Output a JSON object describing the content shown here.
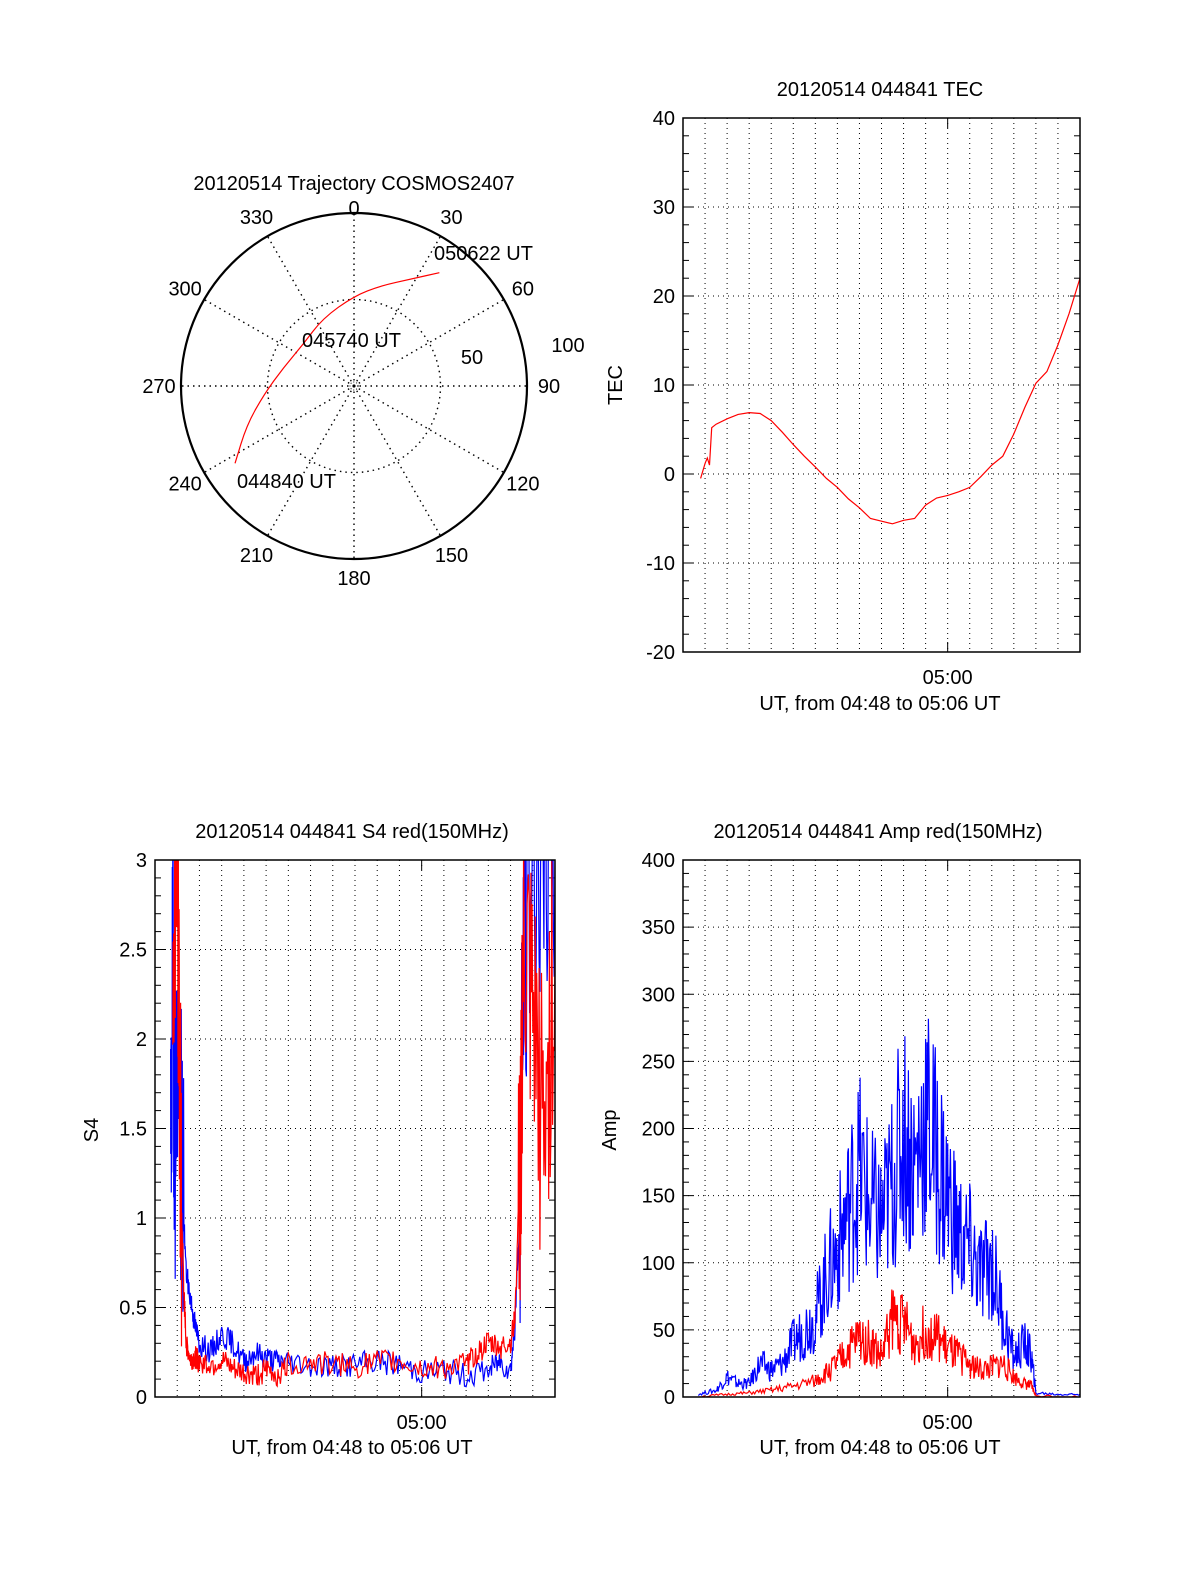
{
  "colors": {
    "series_red": "#ff0000",
    "series_blue": "#0000ff",
    "axis": "#000000",
    "grid": "#000000"
  },
  "chart_data": [
    {
      "type": "polar",
      "title": "20120514 Trajectory COSMOS2407",
      "azimuth_labels": [
        "0",
        "30",
        "60",
        "90",
        "120",
        "150",
        "180",
        "210",
        "240",
        "270",
        "300",
        "330"
      ],
      "radial_labels": [
        "50",
        "100"
      ],
      "radial_range": [
        0,
        100
      ],
      "grid": true,
      "trajectory": {
        "color": "red",
        "points": [
          {
            "az": 237,
            "r": 82
          },
          {
            "az": 250,
            "r": 66
          },
          {
            "az": 265,
            "r": 52
          },
          {
            "az": 285,
            "r": 42
          },
          {
            "az": 310,
            "r": 38
          },
          {
            "az": 335,
            "r": 43
          },
          {
            "az": 0,
            "r": 52
          },
          {
            "az": 15,
            "r": 60
          },
          {
            "az": 28,
            "r": 70
          },
          {
            "az": 37,
            "r": 82
          }
        ]
      },
      "annotations": [
        {
          "text": "044840 UT",
          "az": 237,
          "r": 82
        },
        {
          "text": "045740 UT",
          "az": 330,
          "r": 25
        },
        {
          "text": "050622 UT",
          "az": 37,
          "r": 82
        }
      ]
    },
    {
      "type": "line",
      "title": "20120514 044841 TEC",
      "xlabel": "UT, from 04:48 to 05:06 UT",
      "ylabel": "TEC",
      "xlim": [
        0,
        18
      ],
      "ylim": [
        -20,
        40
      ],
      "yticks": [
        "-20",
        "-10",
        "0",
        "10",
        "20",
        "30",
        "40"
      ],
      "xtick_labels": [
        {
          "x": 12,
          "label": "05:00"
        }
      ],
      "grid": true,
      "series": [
        {
          "name": "TEC",
          "color": "red",
          "x": [
            0.8,
            1.0,
            1.1,
            1.2,
            1.3,
            1.5,
            2.0,
            2.5,
            3.0,
            3.5,
            4.0,
            4.5,
            5.0,
            5.5,
            6.0,
            6.5,
            7.0,
            7.5,
            8.0,
            8.5,
            9.0,
            9.5,
            10.0,
            10.5,
            11.0,
            11.5,
            12.0,
            12.5,
            13.0,
            13.5,
            14.0,
            14.5,
            15.0,
            15.5,
            16.0,
            16.5,
            17.0,
            17.5,
            18.0
          ],
          "y": [
            -0.5,
            1.2,
            1.8,
            1.0,
            5.2,
            5.6,
            6.2,
            6.7,
            6.9,
            6.8,
            6.0,
            4.7,
            3.3,
            2.0,
            0.8,
            -0.5,
            -1.5,
            -2.8,
            -3.8,
            -5.0,
            -5.3,
            -5.6,
            -5.2,
            -5.0,
            -3.5,
            -2.7,
            -2.4,
            -2.0,
            -1.5,
            -0.3,
            1.0,
            2.0,
            4.5,
            7.5,
            10.2,
            11.5,
            14.5,
            18.0,
            22.0
          ]
        }
      ]
    },
    {
      "type": "line",
      "title": "20120514 044841 S4 red(150MHz)",
      "xlabel": "UT, from 04:48 to 05:06 UT",
      "ylabel": "S4",
      "xlim": [
        0,
        18
      ],
      "ylim": [
        0,
        3
      ],
      "yticks": [
        "0",
        "0.5",
        "1",
        "1.5",
        "2",
        "2.5",
        "3"
      ],
      "xtick_labels": [
        {
          "x": 12,
          "label": "05:00"
        }
      ],
      "grid": true,
      "series": [
        {
          "name": "blue",
          "color": "blue",
          "x": [
            0.7,
            0.8,
            0.9,
            1.0,
            1.2,
            1.4,
            1.6,
            1.8,
            2.0,
            2.5,
            3.0,
            3.5,
            4.0,
            4.5,
            5.0,
            5.5,
            6.0,
            7.0,
            8.0,
            9.0,
            10.0,
            11.0,
            12.0,
            13.0,
            14.0,
            15.0,
            15.5,
            16.0,
            16.2,
            16.4,
            16.6,
            17.0,
            17.5,
            18.0
          ],
          "y": [
            1.1,
            2.4,
            1.5,
            2.0,
            1.3,
            0.7,
            0.55,
            0.4,
            0.3,
            0.25,
            0.35,
            0.3,
            0.2,
            0.25,
            0.22,
            0.2,
            0.2,
            0.18,
            0.17,
            0.18,
            0.2,
            0.18,
            0.14,
            0.15,
            0.12,
            0.15,
            0.2,
            0.15,
            0.4,
            1.0,
            2.5,
            3.0,
            3.0,
            3.0
          ]
        },
        {
          "name": "red",
          "color": "red",
          "x": [
            0.8,
            1.0,
            1.1,
            1.2,
            1.3,
            1.4,
            1.6,
            1.8,
            2.0,
            2.5,
            3.0,
            3.5,
            4.0,
            4.5,
            5.0,
            5.5,
            6.0,
            7.0,
            8.0,
            9.0,
            10.0,
            11.0,
            12.0,
            13.0,
            14.0,
            14.5,
            15.0,
            15.5,
            16.0,
            16.2,
            16.4,
            16.6,
            17.0,
            17.5,
            18.0
          ],
          "y": [
            2.5,
            3.0,
            2.0,
            1.0,
            0.6,
            0.3,
            0.2,
            0.22,
            0.2,
            0.18,
            0.2,
            0.15,
            0.13,
            0.12,
            0.15,
            0.12,
            0.18,
            0.2,
            0.18,
            0.17,
            0.2,
            0.2,
            0.16,
            0.17,
            0.18,
            0.25,
            0.3,
            0.28,
            0.3,
            0.45,
            1.2,
            2.5,
            2.0,
            1.5,
            2.5
          ]
        }
      ]
    },
    {
      "type": "line",
      "title": "20120514 044841 Amp red(150MHz)",
      "xlabel": "UT, from 04:48 to 05:06 UT",
      "ylabel": "Amp",
      "xlim": [
        0,
        18
      ],
      "ylim": [
        0,
        400
      ],
      "yticks": [
        "0",
        "50",
        "100",
        "150",
        "200",
        "250",
        "300",
        "350",
        "400"
      ],
      "xtick_labels": [
        {
          "x": 12,
          "label": "05:00"
        }
      ],
      "grid": true,
      "series": [
        {
          "name": "blue",
          "color": "blue",
          "x": [
            0.7,
            1.5,
            2.0,
            2.5,
            3.0,
            3.5,
            4.0,
            4.5,
            5.0,
            5.5,
            6.0,
            6.5,
            7.0,
            7.5,
            8.0,
            8.5,
            9.0,
            9.5,
            10.0,
            10.5,
            11.0,
            11.5,
            12.0,
            12.5,
            13.0,
            13.5,
            14.0,
            14.5,
            15.0,
            15.5,
            15.8,
            16.0,
            17.0,
            18.0
          ],
          "y": [
            2,
            5,
            15,
            10,
            10,
            25,
            20,
            25,
            40,
            50,
            60,
            90,
            110,
            140,
            170,
            140,
            130,
            160,
            200,
            170,
            210,
            180,
            150,
            120,
            110,
            90,
            100,
            60,
            30,
            40,
            30,
            3,
            2,
            2
          ]
        },
        {
          "name": "red",
          "color": "red",
          "x": [
            0.7,
            2.0,
            3.0,
            4.0,
            5.0,
            6.0,
            6.5,
            7.0,
            7.5,
            8.0,
            8.5,
            9.0,
            9.5,
            10.0,
            10.5,
            11.0,
            11.5,
            12.0,
            12.5,
            13.0,
            13.5,
            14.0,
            14.5,
            15.0,
            15.5,
            15.8,
            16.0,
            18.0
          ],
          "y": [
            0,
            2,
            3,
            5,
            8,
            12,
            18,
            25,
            35,
            45,
            40,
            30,
            60,
            55,
            40,
            50,
            45,
            35,
            30,
            25,
            20,
            22,
            25,
            15,
            10,
            8,
            1,
            0
          ]
        }
      ]
    }
  ]
}
